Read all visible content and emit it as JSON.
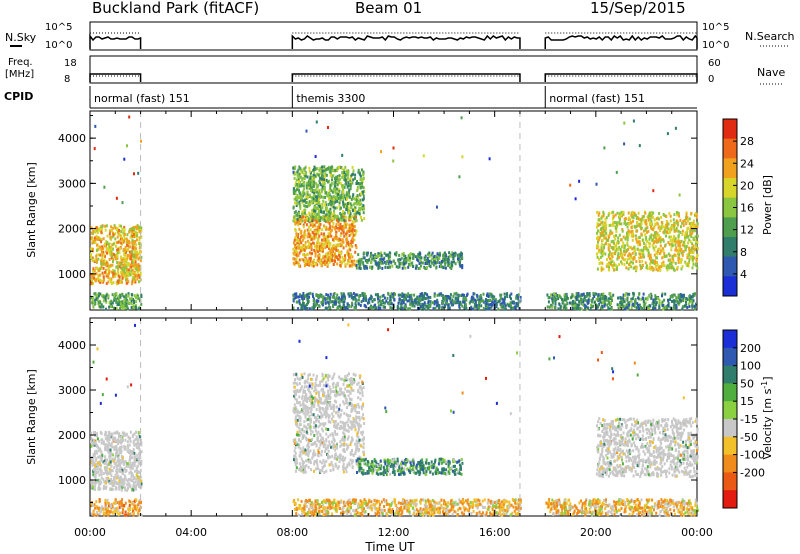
{
  "header": {
    "station": "Buckland Park (fitACF)",
    "beam": "Beam 01",
    "date": "15/Sep/2015"
  },
  "strip_labels": {
    "nsky": "N.Sky",
    "freq_line1": "Freq.",
    "freq_line2": "[MHz]",
    "cpid": "CPID",
    "nsearch": "N.Search",
    "nave": "Nave"
  },
  "strip_ticks": {
    "nsky_top": "10^5",
    "nsky_bottom": "10^0",
    "freq_top": "18",
    "freq_bottom": "8",
    "nave_top": "60",
    "nave_bottom": "0"
  },
  "cpid_segments": [
    {
      "label": "normal (fast) 151",
      "start_h": 0,
      "end_h": 2
    },
    {
      "label": "themis 3300",
      "start_h": 8,
      "end_h": 17
    },
    {
      "label": "normal (fast) 151",
      "start_h": 18,
      "end_h": 24
    }
  ],
  "operation_windows_h": [
    [
      0,
      2
    ],
    [
      8,
      17
    ],
    [
      18,
      24
    ]
  ],
  "chart_data": [
    {
      "type": "heatmap",
      "quantity": "Power",
      "ylabel": "Slant Range [km]",
      "yticks": [
        "1000",
        "2000",
        "3000",
        "4000"
      ],
      "ylim": [
        200,
        4600
      ],
      "xlim": [
        0,
        24
      ],
      "colorbar_label": "Power [dB]",
      "colorbar_ticks": [
        "4",
        "8",
        "12",
        "16",
        "20",
        "24",
        "28"
      ],
      "colorbar_range": [
        0,
        32
      ],
      "colors": [
        "#1c2fd6",
        "#2f58b0",
        "#2f7d6a",
        "#4f9e4e",
        "#8ac63f",
        "#d8d52a",
        "#f0a21f",
        "#ee6a1a",
        "#e12a12"
      ],
      "echo_regions": [
        {
          "x": [
            0,
            2
          ],
          "y": [
            800,
            2100
          ],
          "power": 22,
          "note": "dense"
        },
        {
          "x": [
            0,
            2
          ],
          "y": [
            250,
            600
          ],
          "power": 12
        },
        {
          "x": [
            8,
            10.5
          ],
          "y": [
            1200,
            2300
          ],
          "power": 24
        },
        {
          "x": [
            8,
            10.8
          ],
          "y": [
            2200,
            3400
          ],
          "power": 14
        },
        {
          "x": [
            10.5,
            14.7
          ],
          "y": [
            1150,
            1500
          ],
          "power": 10
        },
        {
          "x": [
            8,
            17
          ],
          "y": [
            250,
            600
          ],
          "power": 8
        },
        {
          "x": [
            20,
            24
          ],
          "y": [
            1100,
            2400
          ],
          "power": 20
        },
        {
          "x": [
            18,
            24
          ],
          "y": [
            250,
            600
          ],
          "power": 10
        }
      ]
    },
    {
      "type": "heatmap",
      "quantity": "Velocity",
      "ylabel": "Slant Range [km]",
      "xlabel": "Time UT",
      "yticks": [
        "1000",
        "2000",
        "3000",
        "4000"
      ],
      "ylim": [
        200,
        4600
      ],
      "xlim": [
        0,
        24
      ],
      "xticks": [
        "00:00",
        "04:00",
        "08:00",
        "12:00",
        "16:00",
        "20:00",
        "00:00"
      ],
      "colorbar_label_main": "Velocity [m s",
      "colorbar_label_exp": "-1",
      "colorbar_label_end": "]",
      "colorbar_ticks": [
        "200",
        "100",
        "50",
        "15",
        "-15",
        "-50",
        "-100",
        "-200"
      ],
      "colors": [
        "#1c2fd6",
        "#2f58b0",
        "#2f7d6a",
        "#4fae3e",
        "#8ad040",
        "#c8c8c8",
        "#f2c02a",
        "#f08c1c",
        "#ea5a14",
        "#e21a10"
      ],
      "echo_regions": [
        {
          "x": [
            0,
            2
          ],
          "y": [
            800,
            2100
          ],
          "velocity": 0,
          "note": "ground scatter grey"
        },
        {
          "x": [
            0,
            2
          ],
          "y": [
            250,
            600
          ],
          "velocity": -40
        },
        {
          "x": [
            8,
            10.8
          ],
          "y": [
            1200,
            3400
          ],
          "velocity": 0
        },
        {
          "x": [
            10.5,
            14.7
          ],
          "y": [
            1150,
            1500
          ],
          "velocity": 40
        },
        {
          "x": [
            8,
            17
          ],
          "y": [
            250,
            600
          ],
          "velocity": -30
        },
        {
          "x": [
            20,
            24
          ],
          "y": [
            1100,
            2400
          ],
          "velocity": 0
        },
        {
          "x": [
            18,
            24
          ],
          "y": [
            250,
            600
          ],
          "velocity": -30
        }
      ]
    }
  ]
}
